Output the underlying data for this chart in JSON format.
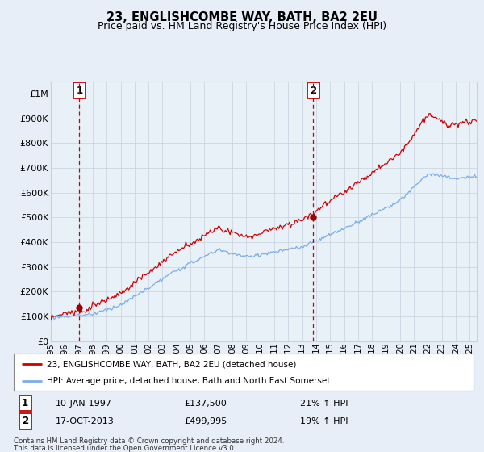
{
  "title": "23, ENGLISHCOMBE WAY, BATH, BA2 2EU",
  "subtitle": "Price paid vs. HM Land Registry's House Price Index (HPI)",
  "sale1_price": 137500,
  "sale1_pct": "21% ↑ HPI",
  "sale1_date_str": "10-JAN-1997",
  "sale2_price": 499995,
  "sale2_pct": "19% ↑ HPI",
  "sale2_date_str": "17-OCT-2013",
  "sale1_x": 1997.04,
  "sale1_y": 137500,
  "sale2_x": 2013.79,
  "sale2_y": 499995,
  "x_start": 1995.0,
  "x_end": 2025.5,
  "y_min": 0,
  "y_max": 1050000,
  "yticks": [
    0,
    100000,
    200000,
    300000,
    400000,
    500000,
    600000,
    700000,
    800000,
    900000,
    1000000
  ],
  "ytick_labels": [
    "£0",
    "£100K",
    "£200K",
    "£300K",
    "£400K",
    "£500K",
    "£600K",
    "£700K",
    "£800K",
    "£900K",
    "£1M"
  ],
  "xticks": [
    1995,
    1996,
    1997,
    1998,
    1999,
    2000,
    2001,
    2002,
    2003,
    2004,
    2005,
    2006,
    2007,
    2008,
    2009,
    2010,
    2011,
    2012,
    2013,
    2014,
    2015,
    2016,
    2017,
    2018,
    2019,
    2020,
    2021,
    2022,
    2023,
    2024,
    2025
  ],
  "hpi_line_color": "#7aaee8",
  "price_line_color": "#cc0000",
  "sale_dot_color": "#990000",
  "dashed_line_color": "#cc0000",
  "bg_color": "#e8eef8",
  "plot_bg_color": "#e8f0f8",
  "grid_color": "#c8d0dc",
  "legend_line1": "23, ENGLISHCOMBE WAY, BATH, BA2 2EU (detached house)",
  "legend_line2": "HPI: Average price, detached house, Bath and North East Somerset",
  "footer1": "Contains HM Land Registry data © Crown copyright and database right 2024.",
  "footer2": "This data is licensed under the Open Government Licence v3.0.",
  "label1_text": "1",
  "label2_text": "2",
  "title_fontsize": 10.5,
  "subtitle_fontsize": 9,
  "axis_fontsize": 8
}
